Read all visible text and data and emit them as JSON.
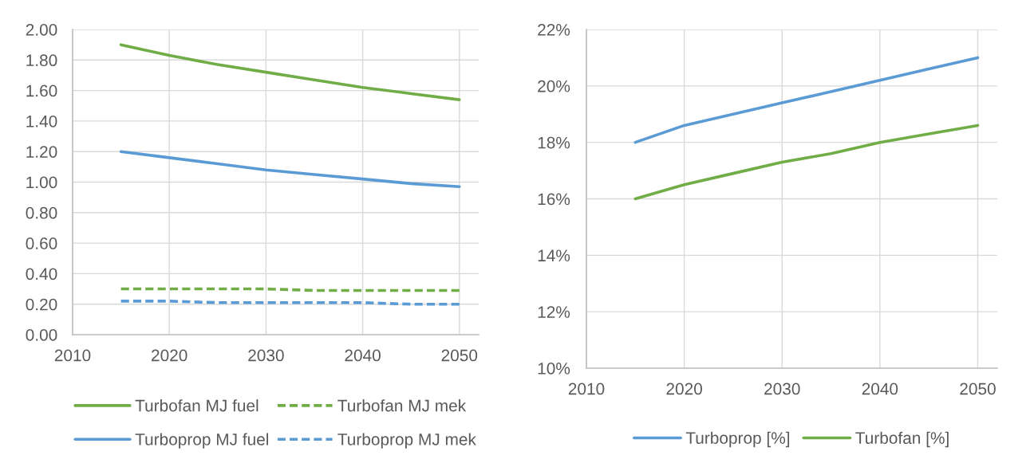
{
  "chart_data": [
    {
      "type": "line",
      "x": [
        2015,
        2020,
        2025,
        2030,
        2035,
        2040,
        2045,
        2050
      ],
      "series": [
        {
          "name": "Turbofan MJ fuel",
          "color": "#70ad47",
          "line_style": "solid",
          "values": [
            1.9,
            1.83,
            1.77,
            1.72,
            1.67,
            1.62,
            1.58,
            1.54
          ]
        },
        {
          "name": "Turbofan MJ mek",
          "color": "#70ad47",
          "line_style": "dashed",
          "values": [
            0.3,
            0.3,
            0.3,
            0.3,
            0.29,
            0.29,
            0.29,
            0.29
          ]
        },
        {
          "name": "Turboprop MJ fuel",
          "color": "#5b9bd5",
          "line_style": "solid",
          "values": [
            1.2,
            1.16,
            1.12,
            1.08,
            1.05,
            1.02,
            0.99,
            0.97
          ]
        },
        {
          "name": "Turboprop MJ mek",
          "color": "#5b9bd5",
          "line_style": "dashed",
          "values": [
            0.22,
            0.22,
            0.21,
            0.21,
            0.21,
            0.21,
            0.2,
            0.2
          ]
        }
      ],
      "xlim": [
        2010,
        2052
      ],
      "xticks": [
        2010,
        2020,
        2030,
        2040,
        2050
      ],
      "ylim": [
        0,
        2
      ],
      "yticks": [
        {
          "value": 0,
          "label": "0.00"
        },
        {
          "value": 0.2,
          "label": "0.20"
        },
        {
          "value": 0.4,
          "label": "0.40"
        },
        {
          "value": 0.6,
          "label": "0.60"
        },
        {
          "value": 0.8,
          "label": "0.80"
        },
        {
          "value": 1.0,
          "label": "1.00"
        },
        {
          "value": 1.2,
          "label": "1.20"
        },
        {
          "value": 1.4,
          "label": "1.40"
        },
        {
          "value": 1.6,
          "label": "1.60"
        },
        {
          "value": 1.8,
          "label": "1.80"
        },
        {
          "value": 2.0,
          "label": "2.00"
        }
      ],
      "grid": true,
      "legend": "bottom"
    },
    {
      "type": "line",
      "x": [
        2015,
        2020,
        2025,
        2030,
        2035,
        2040,
        2045,
        2050
      ],
      "series": [
        {
          "name": "Turboprop [%]",
          "color": "#5b9bd5",
          "values": [
            18.0,
            18.6,
            19.0,
            19.4,
            19.8,
            20.2,
            20.6,
            21.0
          ]
        },
        {
          "name": "Turbofan [%]",
          "color": "#70ad47",
          "values": [
            16.0,
            16.5,
            16.9,
            17.3,
            17.6,
            18.0,
            18.3,
            18.6
          ]
        }
      ],
      "xlim": [
        2010,
        2052
      ],
      "xticks": [
        2010,
        2020,
        2030,
        2040,
        2050
      ],
      "ylim": [
        10,
        22
      ],
      "yticks": [
        {
          "value": 10,
          "label": "10%"
        },
        {
          "value": 12,
          "label": "12%"
        },
        {
          "value": 14,
          "label": "14%"
        },
        {
          "value": 16,
          "label": "16%"
        },
        {
          "value": 18,
          "label": "18%"
        },
        {
          "value": 20,
          "label": "20%"
        },
        {
          "value": 22,
          "label": "22%"
        }
      ],
      "grid": true,
      "legend": "bottom"
    }
  ]
}
